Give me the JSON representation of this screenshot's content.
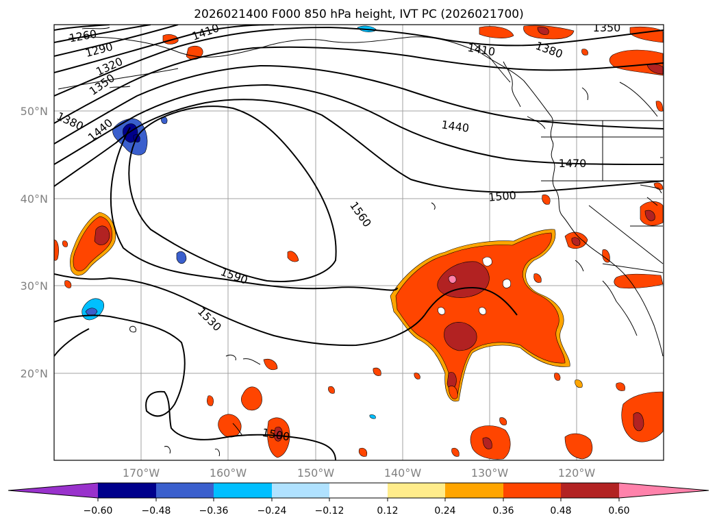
{
  "title": "2026021400 F000 850 hPa height, IVT PC (2026021700)",
  "lat_labels": [
    "50°N",
    "40°N",
    "30°N",
    "20°N"
  ],
  "lon_labels": [
    "170°W",
    "160°W",
    "150°W",
    "140°W",
    "130°W",
    "120°W"
  ],
  "colorbar": {
    "ticks": [
      "−0.60",
      "−0.48",
      "−0.36",
      "−0.24",
      "−0.12",
      "0.12",
      "0.24",
      "0.36",
      "0.48",
      "0.60"
    ],
    "colors": [
      "#9932cc",
      "#00008b",
      "#3a5fcd",
      "#00bfff",
      "#b0e2ff",
      "#ffffff",
      "#ffec8b",
      "#ffa500",
      "#ff4500",
      "#b22222",
      "#ff82ab"
    ]
  },
  "contour_labels": [
    "1260",
    "1290",
    "1320",
    "1350",
    "1380",
    "1410",
    "1440",
    "1440",
    "1470",
    "1500",
    "1530",
    "1560",
    "1590",
    "1500",
    "1350",
    "1380",
    "1410"
  ]
}
